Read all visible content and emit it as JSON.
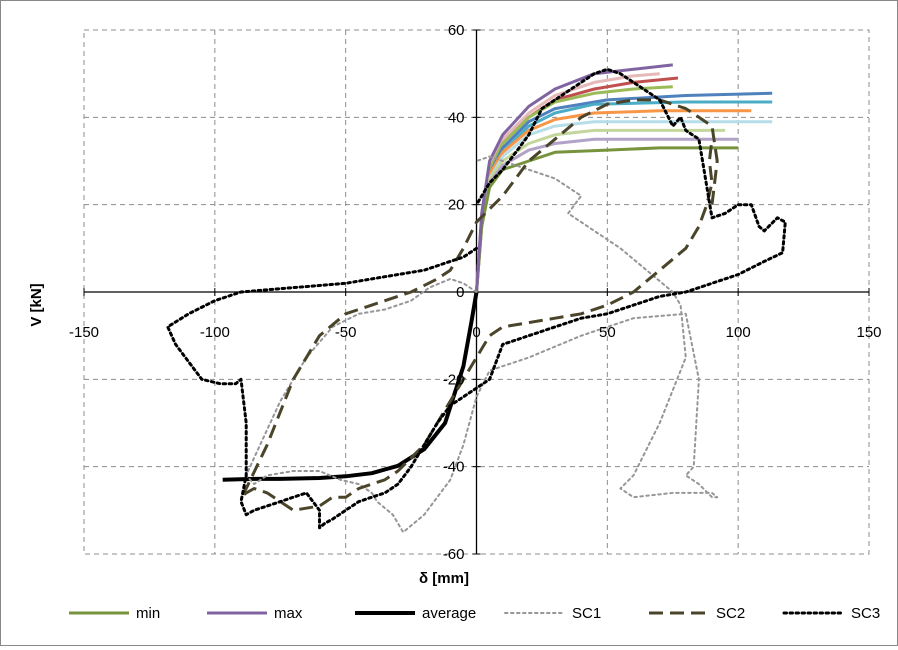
{
  "chart_data": {
    "type": "line",
    "xlabel": "δ [mm]",
    "ylabel": "V [kN]",
    "xlim": [
      -150,
      150
    ],
    "ylim": [
      -60,
      60
    ],
    "xticks": [
      -150,
      -100,
      -50,
      0,
      50,
      100,
      150
    ],
    "yticks": [
      -60,
      -40,
      -20,
      0,
      20,
      40,
      60
    ],
    "grid": true,
    "legend_position": "bottom",
    "legend": [
      "min",
      "max",
      "average",
      "SC1",
      "SC2",
      "SC3"
    ],
    "series": [
      {
        "name": "min",
        "color": "#77933c",
        "style": "solid",
        "width": 3,
        "x": [
          0,
          2,
          5,
          10,
          20,
          30,
          50,
          70,
          100
        ],
        "y": [
          0,
          15,
          24,
          28,
          30,
          32,
          32.5,
          33,
          33
        ]
      },
      {
        "name": "max",
        "color": "#8064a2",
        "style": "solid",
        "width": 3,
        "x": [
          0,
          2,
          5,
          10,
          20,
          30,
          45,
          60,
          75
        ],
        "y": [
          0,
          18,
          30,
          36,
          42.5,
          46.5,
          50,
          51,
          52
        ]
      },
      {
        "name": "average",
        "color": "#000000",
        "style": "solid",
        "width": 4,
        "x": [
          -97,
          -85,
          -75,
          -60,
          -50,
          -40,
          -30,
          -20,
          -12,
          -5,
          -2,
          0
        ],
        "y": [
          -43,
          -42.8,
          -42.8,
          -42.6,
          -42.2,
          -41.5,
          -39.8,
          -36,
          -30,
          -17,
          -7,
          0
        ]
      },
      {
        "name": "SC1",
        "color": "#969696",
        "style": "dotted",
        "width": 2,
        "x": [
          0,
          -5,
          -10,
          -18,
          -25,
          -35,
          -45,
          -55,
          -65,
          -75,
          -85,
          -88,
          -85,
          -80,
          -70,
          -60,
          -52,
          -45,
          -40,
          -38,
          -32,
          -28,
          -20,
          -10,
          -5,
          0,
          5,
          10,
          20,
          40,
          60,
          80,
          85,
          83,
          80,
          85,
          90,
          92,
          90,
          75,
          60,
          55,
          60,
          70,
          80,
          78,
          75,
          65,
          55,
          45,
          40,
          35,
          40,
          30,
          20,
          10,
          5,
          0
        ],
        "y": [
          0,
          2,
          3,
          1,
          -2,
          -4,
          -5,
          -8,
          -15,
          -25,
          -38,
          -42,
          -44,
          -42,
          -41,
          -41,
          -43,
          -44,
          -46,
          -48,
          -51,
          -55,
          -51,
          -43,
          -35,
          -24,
          -18,
          -17,
          -15,
          -10,
          -6,
          -5,
          -20,
          -40,
          -42,
          -44,
          -47,
          -47,
          -46,
          -46,
          -47,
          -45,
          -42,
          -30,
          -15,
          -3,
          0,
          5,
          10,
          14,
          16,
          18,
          22,
          26,
          28,
          30,
          31,
          30
        ]
      },
      {
        "name": "SC2",
        "color": "#4a452a",
        "style": "dashed",
        "width": 3,
        "x": [
          90,
          92,
          90,
          85,
          80,
          70,
          60,
          50,
          40,
          30,
          20,
          10,
          0,
          -5,
          -10,
          -15,
          -25,
          -35,
          -50,
          -60,
          -70,
          -80,
          -88,
          -90,
          -88,
          -85,
          -80,
          -75,
          -70,
          -60,
          -55,
          -50,
          -45,
          -40,
          -35,
          -30,
          -25,
          -20,
          -15,
          -10,
          -5,
          0,
          5,
          10,
          20,
          30,
          40,
          50,
          60,
          70,
          80,
          85,
          88,
          90,
          89,
          90
        ],
        "y": [
          20,
          30,
          38,
          40,
          42,
          44,
          44,
          43,
          40,
          35,
          30,
          22,
          16,
          10,
          5,
          3,
          0,
          -2,
          -5,
          -10,
          -20,
          -35,
          -45,
          -47,
          -46,
          -45,
          -46,
          -48,
          -50,
          -49,
          -47,
          -47,
          -45,
          -44,
          -43,
          -41,
          -38,
          -35,
          -30,
          -25,
          -20,
          -15,
          -10,
          -8,
          -7,
          -6,
          -5,
          -3,
          0,
          5,
          10,
          15,
          20,
          25,
          30,
          35
        ]
      },
      {
        "name": "SC3",
        "color": "#000000",
        "style": "dotted",
        "width": 3,
        "x": [
          0,
          -5,
          -10,
          -20,
          -30,
          -40,
          -50,
          -60,
          -70,
          -80,
          -90,
          -100,
          -110,
          -118,
          -115,
          -110,
          -105,
          -98,
          -95,
          -92,
          -90,
          -88,
          -88,
          -90,
          -88,
          -85,
          -80,
          -75,
          -70,
          -65,
          -60,
          -60,
          -58,
          -55,
          -50,
          -45,
          -40,
          -35,
          -30,
          -25,
          -20,
          -15,
          -10,
          -5,
          0,
          5,
          10,
          20,
          30,
          40,
          50,
          60,
          70,
          80,
          90,
          100,
          110,
          117,
          118,
          115,
          110,
          108,
          105,
          100,
          95,
          90,
          85,
          80,
          78,
          75,
          70,
          65,
          60,
          55,
          50,
          45,
          40,
          35,
          30,
          25,
          20,
          15,
          10,
          5,
          0
        ],
        "y": [
          10,
          8,
          7,
          5,
          4,
          3,
          2,
          1.5,
          1,
          0.5,
          0,
          -2,
          -5,
          -8,
          -12,
          -16,
          -20,
          -21,
          -21,
          -21,
          -20,
          -30,
          -42,
          -48,
          -51,
          -50,
          -49,
          -48,
          -47,
          -46,
          -50,
          -54,
          -53,
          -52,
          -50,
          -48,
          -47,
          -46,
          -44,
          -40,
          -35,
          -30,
          -26,
          -24,
          -22,
          -20,
          -12,
          -10,
          -8,
          -6,
          -5,
          -3,
          -1,
          0,
          2,
          4,
          7,
          9,
          16,
          17,
          14,
          15,
          20,
          20,
          18,
          17,
          35,
          37,
          40,
          38,
          44,
          46,
          48,
          50,
          51,
          50,
          48,
          46,
          44,
          42,
          36,
          32,
          28,
          25,
          20
        ]
      },
      {
        "color": "#e6b9b8",
        "style": "solid",
        "width": 3,
        "x": [
          0,
          2,
          5,
          10,
          20,
          30,
          45,
          60,
          70
        ],
        "y": [
          0,
          17,
          29,
          35,
          41,
          45,
          48,
          49.5,
          50
        ]
      },
      {
        "color": "#c0504d",
        "style": "solid",
        "width": 3,
        "x": [
          0,
          2,
          5,
          10,
          20,
          30,
          45,
          60,
          77
        ],
        "y": [
          0,
          17,
          28,
          34,
          40,
          44,
          46.5,
          48,
          49
        ]
      },
      {
        "color": "#9bbb59",
        "style": "solid",
        "width": 3,
        "x": [
          0,
          2,
          5,
          10,
          20,
          30,
          45,
          60,
          75
        ],
        "y": [
          0,
          17,
          28,
          34,
          40,
          43.5,
          45.5,
          46.5,
          47
        ]
      },
      {
        "color": "#4f81bd",
        "style": "solid",
        "width": 3,
        "x": [
          0,
          2,
          5,
          10,
          20,
          30,
          50,
          80,
          113
        ],
        "y": [
          0,
          16,
          27,
          33,
          39,
          42,
          44,
          45,
          45.5
        ]
      },
      {
        "color": "#4bacc6",
        "style": "solid",
        "width": 3,
        "x": [
          0,
          2,
          5,
          10,
          20,
          30,
          45,
          80,
          113
        ],
        "y": [
          0,
          16,
          27,
          32,
          38,
          41,
          43,
          43.5,
          43.5
        ]
      },
      {
        "color": "#f79646",
        "style": "solid",
        "width": 3,
        "x": [
          0,
          2,
          5,
          10,
          20,
          30,
          45,
          70,
          105
        ],
        "y": [
          0,
          16,
          27,
          32,
          37,
          39.5,
          41,
          41.5,
          41.5
        ]
      },
      {
        "color": "#b7dee8",
        "style": "solid",
        "width": 3,
        "x": [
          0,
          2,
          5,
          10,
          20,
          30,
          45,
          80,
          113
        ],
        "y": [
          0,
          15,
          26,
          31,
          36,
          38,
          39,
          39,
          39
        ]
      },
      {
        "color": "#c3d69b",
        "style": "solid",
        "width": 3,
        "x": [
          0,
          2,
          5,
          10,
          20,
          30,
          45,
          70,
          95
        ],
        "y": [
          0,
          15,
          26,
          30,
          34,
          36,
          37,
          37,
          37
        ]
      },
      {
        "color": "#b3a2c7",
        "style": "solid",
        "width": 3,
        "x": [
          0,
          2,
          5,
          10,
          20,
          30,
          45,
          70,
          100
        ],
        "y": [
          0,
          15,
          25,
          29,
          32.5,
          34,
          35,
          35,
          35
        ]
      }
    ]
  }
}
